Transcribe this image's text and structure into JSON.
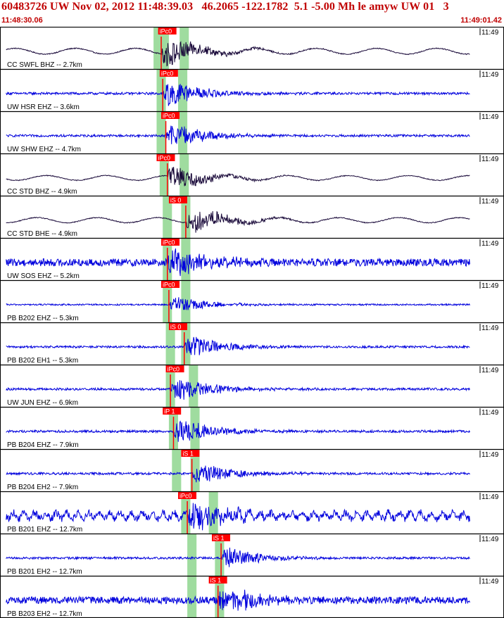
{
  "header": {
    "title": "60483726 UW Nov 02, 2012 11:48:39.03   46.2065 -122.1782  5.1 -5.00 Mh le amyw UW 01   3",
    "start_time": "11:48:30.06",
    "end_time": "11:49:01.42"
  },
  "colors": {
    "background": "#ffffff",
    "broadband_trace": "#1a0a3a",
    "short_period_trace": "#0000dd",
    "pick_label": "#ff0000",
    "pick_label_text": "#ffffff",
    "window_band": "#9fdc9f",
    "header_text": "#c00000",
    "frame": "#000000"
  },
  "chart_data": {
    "type": "seismogram",
    "time_range_s": [
      0,
      31.36
    ],
    "tick_label": "11:49",
    "tick_time_s": 29.94,
    "traces": [
      {
        "label": "CC SWFL BHZ -- 2.7km",
        "kind": "broadband",
        "pick": "iPc0",
        "pick_time_s": 10.5,
        "pick_label_time_s": 10.3,
        "window_s": [
          10.0,
          11.0,
          11.7,
          12.3
        ],
        "amplitude": 0.85
      },
      {
        "label": "UW HSR EHZ -- 3.6km",
        "kind": "short",
        "pick": "iPc0",
        "pick_time_s": 10.6,
        "pick_label_time_s": 10.4,
        "window_s": [
          10.2,
          10.8,
          11.6,
          12.2
        ],
        "amplitude": 0.8
      },
      {
        "label": "UW SHW EHZ -- 4.7km",
        "kind": "short",
        "pick": "iPc0",
        "pick_time_s": 10.8,
        "pick_label_time_s": 10.5,
        "window_s": [
          10.2,
          10.8,
          11.6,
          12.2
        ],
        "amplitude": 0.75
      },
      {
        "label": "CC STD BHZ -- 4.9km",
        "kind": "broadband",
        "pick": "iPc0",
        "pick_time_s": 10.9,
        "pick_label_time_s": 10.2,
        "window_s": [
          10.4,
          11.0,
          11.7,
          12.3
        ],
        "amplitude": 0.7
      },
      {
        "label": "CC STD BHE -- 4.9km",
        "kind": "broadband",
        "pick": "iS 0",
        "pick_time_s": 12.1,
        "pick_label_time_s": 11.0,
        "window_s": [
          10.6,
          11.2,
          11.8,
          12.4
        ],
        "amplitude": 0.75
      },
      {
        "label": "UW SOS EHZ -- 5.2km",
        "kind": "short",
        "pick": "iPc0",
        "pick_time_s": 10.9,
        "pick_label_time_s": 10.5,
        "window_s": [
          10.6,
          11.2,
          11.8,
          12.4
        ],
        "amplitude": 0.9
      },
      {
        "label": "PB B202 EHZ -- 5.3km",
        "kind": "short",
        "pick": "iPc0",
        "pick_time_s": 11.0,
        "pick_label_time_s": 10.5,
        "window_s": [
          10.6,
          11.2,
          11.8,
          12.4
        ],
        "amplitude": 0.5
      },
      {
        "label": "PB B202 EH1 -- 5.3km",
        "kind": "short",
        "pick": "iS 0",
        "pick_time_s": 12.0,
        "pick_label_time_s": 11.0,
        "window_s": [
          10.8,
          11.4,
          11.8,
          12.4
        ],
        "amplitude": 0.7
      },
      {
        "label": "UW JUN EHZ -- 6.9km",
        "kind": "short",
        "pick": "iPc0",
        "pick_time_s": 11.1,
        "pick_label_time_s": 10.8,
        "window_s": [
          10.8,
          11.4,
          12.3,
          12.9
        ],
        "amplitude": 0.75
      },
      {
        "label": "PB B204 EHZ -- 7.9km",
        "kind": "short",
        "pick": "iP 1",
        "pick_time_s": 11.3,
        "pick_label_time_s": 10.6,
        "window_s": [
          11.0,
          11.6,
          12.4,
          13.0
        ],
        "amplitude": 0.8
      },
      {
        "label": "PB B204 EH2 -- 7.9km",
        "kind": "short",
        "pick": "iS 1",
        "pick_time_s": 12.5,
        "pick_label_time_s": 11.8,
        "window_s": [
          11.2,
          11.8,
          12.4,
          13.0
        ],
        "amplitude": 0.75
      },
      {
        "label": "PB B201 EHZ -- 12.7km",
        "kind": "short",
        "pick": "iPc0",
        "pick_time_s": 12.2,
        "pick_label_time_s": 11.6,
        "window_s": [
          11.8,
          12.4,
          13.6,
          14.2
        ],
        "amplitude": 0.85
      },
      {
        "label": "PB B201 EH2 -- 12.7km",
        "kind": "short",
        "pick": "iS 1",
        "pick_time_s": 14.4,
        "pick_label_time_s": 13.8,
        "window_s": [
          12.2,
          12.8,
          14.0,
          14.6
        ],
        "amplitude": 0.7
      },
      {
        "label": "PB B203 EH2 -- 12.7km",
        "kind": "short",
        "pick": "iS 1",
        "pick_time_s": 14.2,
        "pick_label_time_s": 13.6,
        "window_s": [
          12.2,
          12.8,
          14.0,
          14.6
        ],
        "amplitude": 0.85
      }
    ]
  }
}
